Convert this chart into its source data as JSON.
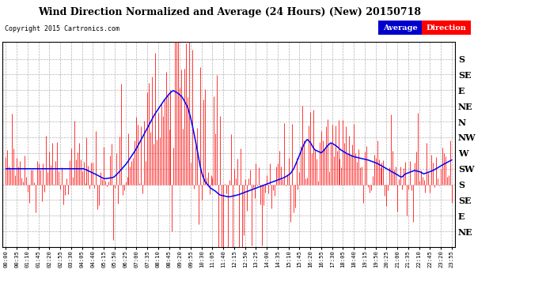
{
  "title": "Wind Direction Normalized and Average (24 Hours) (New) 20150718",
  "copyright": "Copyright 2015 Cartronics.com",
  "bar_color": "#ff0000",
  "line_color": "#0000ff",
  "bg_color": "#ffffff",
  "grid_color": "#aaaaaa",
  "legend_avg_bg": "#0000cc",
  "legend_dir_bg": "#ff0000",
  "ytick_labels": [
    "S",
    "SE",
    "E",
    "NE",
    "N",
    "NW",
    "W",
    "SW",
    "S",
    "SE",
    "E",
    "NE"
  ],
  "ytick_values": [
    180,
    157.5,
    135,
    112.5,
    90,
    67.5,
    45,
    22.5,
    0,
    -22.5,
    -45,
    -67.5
  ],
  "ymin": -90,
  "ymax": 205,
  "n_points": 288,
  "minutes_per_point": 5,
  "xtick_step_minutes": 35,
  "avg_keypoints": [
    [
      0.0,
      22.5
    ],
    [
      4.2,
      22.5
    ],
    [
      4.8,
      15.0
    ],
    [
      5.3,
      8.0
    ],
    [
      5.8,
      10.0
    ],
    [
      6.0,
      15.0
    ],
    [
      6.5,
      30.0
    ],
    [
      7.0,
      50.0
    ],
    [
      7.5,
      75.0
    ],
    [
      8.0,
      100.0
    ],
    [
      8.5,
      120.0
    ],
    [
      8.8,
      130.0
    ],
    [
      9.0,
      135.0
    ],
    [
      9.3,
      130.0
    ],
    [
      9.5,
      125.0
    ],
    [
      9.8,
      110.0
    ],
    [
      10.0,
      90.0
    ],
    [
      10.3,
      50.0
    ],
    [
      10.5,
      20.0
    ],
    [
      10.7,
      5.0
    ],
    [
      11.0,
      -5.0
    ],
    [
      11.3,
      -10.0
    ],
    [
      11.5,
      -15.0
    ],
    [
      12.0,
      -18.0
    ],
    [
      12.5,
      -15.0
    ],
    [
      13.0,
      -10.0
    ],
    [
      13.5,
      -5.0
    ],
    [
      14.0,
      0.0
    ],
    [
      14.5,
      5.0
    ],
    [
      15.0,
      10.0
    ],
    [
      15.3,
      15.0
    ],
    [
      15.5,
      22.5
    ],
    [
      15.7,
      35.0
    ],
    [
      16.0,
      55.0
    ],
    [
      16.2,
      65.0
    ],
    [
      16.4,
      60.0
    ],
    [
      16.6,
      50.0
    ],
    [
      17.0,
      45.0
    ],
    [
      17.3,
      55.0
    ],
    [
      17.5,
      60.0
    ],
    [
      17.8,
      55.0
    ],
    [
      18.0,
      50.0
    ],
    [
      18.3,
      45.0
    ],
    [
      18.7,
      40.0
    ],
    [
      19.0,
      38.0
    ],
    [
      19.5,
      35.0
    ],
    [
      20.0,
      30.0
    ],
    [
      20.5,
      22.5
    ],
    [
      21.0,
      15.0
    ],
    [
      21.3,
      10.0
    ],
    [
      21.5,
      15.0
    ],
    [
      22.0,
      20.0
    ],
    [
      22.3,
      18.0
    ],
    [
      22.5,
      15.0
    ],
    [
      23.0,
      20.0
    ],
    [
      23.5,
      28.0
    ],
    [
      24.0,
      35.0
    ]
  ]
}
